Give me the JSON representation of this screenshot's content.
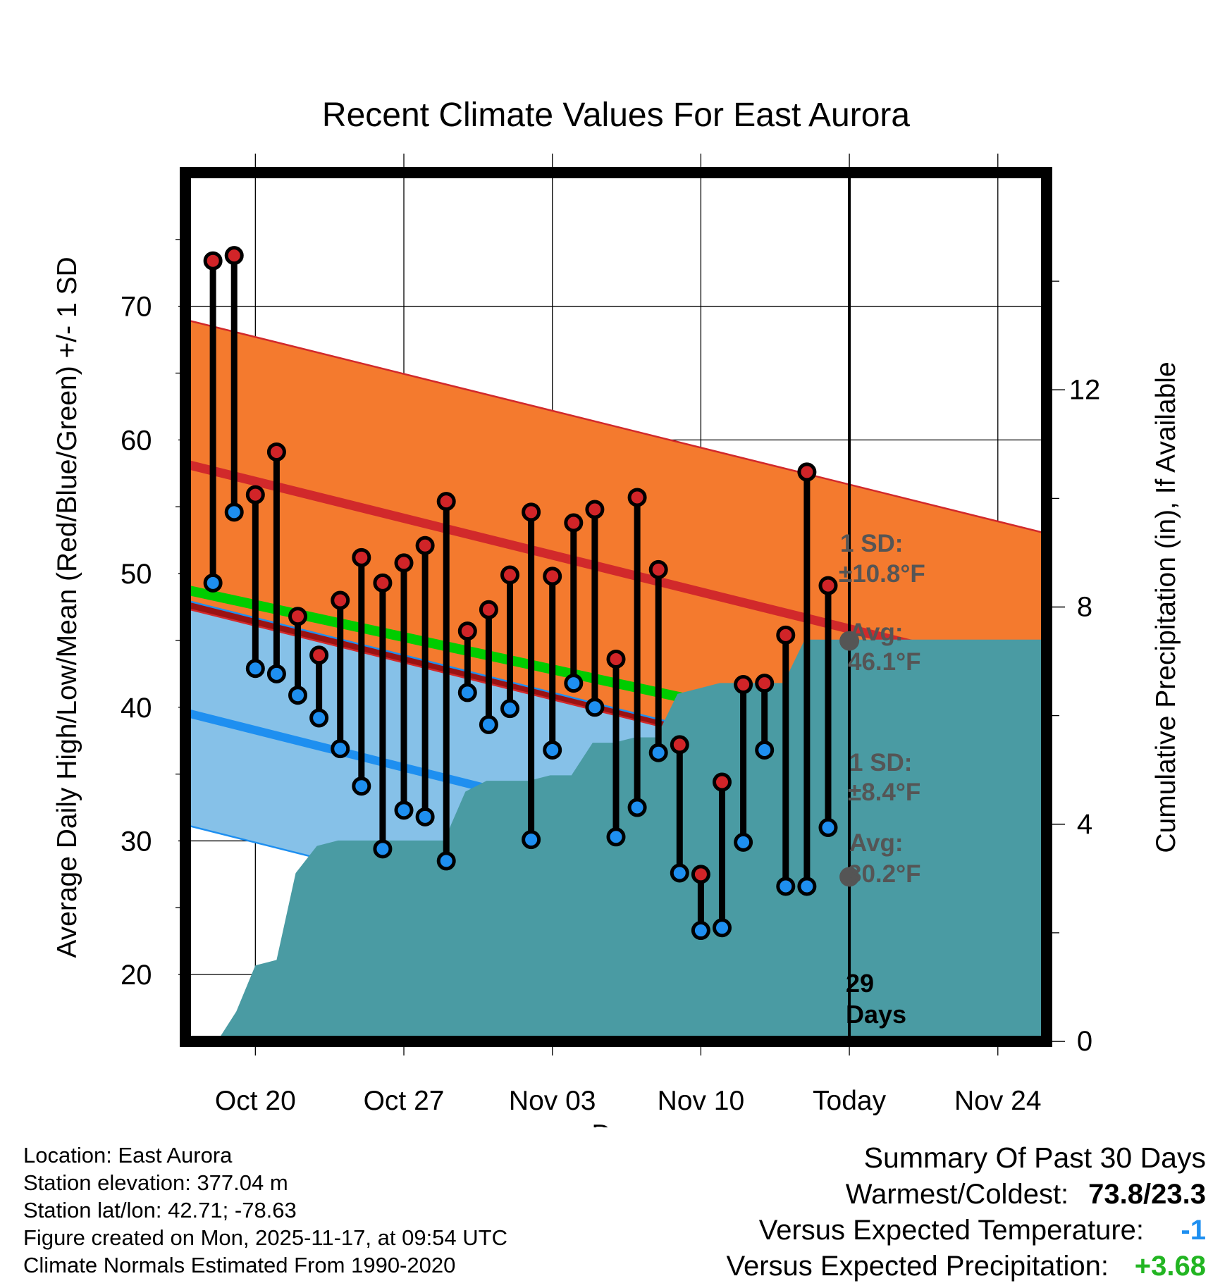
{
  "chart_data": {
    "type": "line",
    "title": "Recent Climate Values For East Aurora",
    "xlabel": "Day",
    "ylabel_left": "Average Daily High/Low/Mean (Red/Blue/Green) +/- 1 SD",
    "ylabel_right": "Cumulative Precipitation (in), If Available",
    "y_left_range": [
      15,
      80
    ],
    "y_left_ticks": [
      "20",
      "30",
      "40",
      "50",
      "60",
      "70"
    ],
    "y_right_range": [
      0,
      16
    ],
    "y_right_ticks": [
      "0",
      "4",
      "8",
      "12"
    ],
    "x_range": [
      -3.3,
      37.3
    ],
    "x_ticks": [
      {
        "day": 0,
        "label": "Oct 20"
      },
      {
        "day": 7,
        "label": "Oct 27"
      },
      {
        "day": 14,
        "label": "Nov 03"
      },
      {
        "day": 21,
        "label": "Nov 10"
      },
      {
        "day": 28,
        "label": "Today"
      },
      {
        "day": 35,
        "label": "Nov 24"
      }
    ],
    "today_day": 28,
    "normals": {
      "high_mean_start": 58.2,
      "high_mean_end": 42.2,
      "high_sd": 10.8,
      "low_mean_start": 39.6,
      "low_mean_end": 23.4,
      "low_sd": 8.4,
      "mean_start": 48.8,
      "mean_end": 34.8
    },
    "daily": {
      "days": [
        -2,
        -1,
        0,
        1,
        2,
        3,
        4,
        5,
        6,
        7,
        8,
        9,
        10,
        11,
        12,
        13,
        14,
        15,
        16,
        17,
        18,
        19,
        20,
        21,
        22,
        23,
        24,
        25,
        26,
        27
      ],
      "high": [
        73.4,
        73.8,
        55.9,
        59.1,
        46.8,
        43.9,
        48.0,
        51.2,
        49.3,
        50.8,
        52.1,
        55.4,
        45.7,
        47.3,
        49.9,
        54.6,
        49.8,
        53.8,
        54.8,
        43.6,
        55.7,
        50.3,
        37.2,
        27.5,
        34.4,
        41.7,
        41.8,
        45.4,
        57.6,
        49.1
      ],
      "low": [
        49.3,
        54.6,
        42.9,
        42.5,
        40.9,
        39.2,
        36.9,
        34.1,
        29.4,
        32.3,
        31.8,
        28.5,
        41.1,
        38.7,
        39.9,
        30.1,
        36.8,
        41.8,
        40.0,
        30.3,
        32.5,
        36.6,
        27.6,
        23.3,
        23.5,
        29.9,
        36.8,
        26.6,
        26.6,
        31.0
      ]
    },
    "precip_cumulative": {
      "days": [
        -1.8,
        -0.9,
        0,
        1,
        1.9,
        2.9,
        3.9,
        4.9,
        5.9,
        6.9,
        7.9,
        8.9,
        9.9,
        10.9,
        11.9,
        12.9,
        13.9,
        14.9,
        15.9,
        16.9,
        17.9,
        18.9,
        19.9,
        20.9,
        21.9,
        22.9,
        23.9,
        24.9,
        25.9,
        26.9,
        27.9,
        28.9,
        37.3
      ],
      "inches": [
        0,
        0.55,
        1.4,
        1.5,
        3.1,
        3.6,
        3.7,
        3.7,
        3.7,
        3.7,
        3.7,
        3.7,
        4.6,
        4.8,
        4.8,
        4.8,
        4.9,
        4.9,
        5.5,
        5.5,
        5.6,
        5.6,
        6.4,
        6.5,
        6.6,
        6.6,
        6.6,
        6.6,
        7.4,
        7.4,
        7.4,
        7.4,
        7.4
      ]
    },
    "annotations": {
      "high_sd_label": "1 SD:",
      "high_sd_value": "±10.8°F",
      "high_avg_label": "Avg:",
      "high_avg_value": "46.1°F",
      "low_sd_label": "1 SD:",
      "low_sd_value": "±8.4°F",
      "low_avg_label": "Avg:",
      "low_avg_value": "30.2°F",
      "days_count": "29",
      "days_word": "Days"
    },
    "colors": {
      "high_band": "#f47a2e",
      "high_line": "#d1292b",
      "low_band": "#86c1e8",
      "low_line": "#1e8ff0",
      "mean_line": "#00cc00",
      "overlap": "#9b1212",
      "precip": "#4a9ba3",
      "high_dot": "#d12428",
      "low_dot": "#1e8ff0",
      "avg_dot": "#555555",
      "annotation": "#555555"
    }
  },
  "info": {
    "location": "Location: East Aurora",
    "elevation": "Station elevation: 377.04 m",
    "latlon": "Station lat/lon: 42.71; -78.63",
    "created": "Figure created on Mon, 2025-11-17, at 09:54 UTC",
    "normals": "Climate Normals Estimated From 1990-2020"
  },
  "summary": {
    "heading": "Summary Of Past 30 Days",
    "warmest_label": "Warmest/Coldest:",
    "warmest_value": "73.8/23.3",
    "temp_label": "Versus Expected Temperature:",
    "temp_value": "-1",
    "temp_color": "#1e8ff0",
    "precip_label": "Versus Expected Precipitation:",
    "precip_value": "+3.68",
    "precip_color": "#22b522"
  }
}
